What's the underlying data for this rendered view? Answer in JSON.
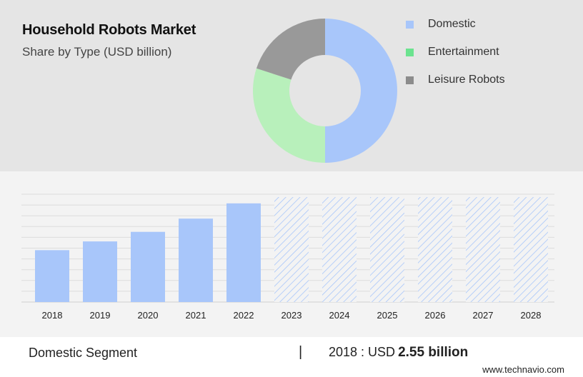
{
  "header": {
    "title": "Household Robots Market",
    "subtitle": "Share by Type (USD billion)"
  },
  "legend": [
    {
      "label": "Domestic",
      "color": "#a8c6fa"
    },
    {
      "label": "Entertainment",
      "color": "#6be38f"
    },
    {
      "label": "Leisure Robots",
      "color": "#8c8c8c"
    }
  ],
  "chart_data": [
    {
      "type": "pie",
      "variant": "donut",
      "title": "Share by Type (USD billion)",
      "slices": [
        {
          "label": "Domestic",
          "share": 0.5,
          "color": "#a8c6fa"
        },
        {
          "label": "Entertainment",
          "share": 0.3,
          "color": "#b8f0bb"
        },
        {
          "label": "Leisure Robots",
          "share": 0.2,
          "color": "#999999"
        }
      ]
    },
    {
      "type": "bar",
      "categories": [
        "2018",
        "2019",
        "2020",
        "2021",
        "2022",
        "2023",
        "2024",
        "2025",
        "2026",
        "2027",
        "2028"
      ],
      "values": [
        2.55,
        2.98,
        3.45,
        4.1,
        4.85,
        null,
        null,
        null,
        null,
        null,
        null
      ],
      "forecast_categories": [
        "2023",
        "2024",
        "2025",
        "2026",
        "2027",
        "2028"
      ],
      "forecast_style": "hatched",
      "bar_color": "#a8c6fa",
      "ylim": [
        0,
        5.3
      ],
      "grid": true,
      "xlabel": "",
      "ylabel": ""
    }
  ],
  "footer": {
    "segment": "Domestic Segment",
    "divider": "|",
    "value_prefix": "2018 : USD",
    "value_bold": "2.55 billion",
    "brand": "www.technavio.com"
  }
}
